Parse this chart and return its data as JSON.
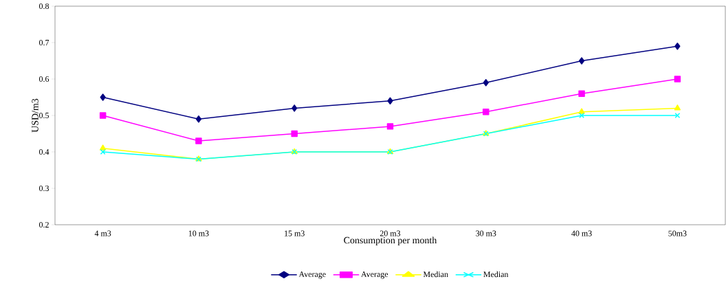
{
  "chart_data": {
    "type": "line",
    "xlabel": "Consumption per month",
    "ylabel": "USD/m3",
    "categories": [
      "4 m3",
      "10 m3",
      "15 m3",
      "20 m3",
      "30 m3",
      "40 m3",
      "50m3"
    ],
    "ylim": [
      0.2,
      0.8
    ],
    "yticks": [
      0.2,
      0.3,
      0.4,
      0.5,
      0.6,
      0.7,
      0.8
    ],
    "grid": false,
    "legend": "bottom",
    "series": [
      {
        "name": "Average",
        "color": "#000080",
        "marker": "diamond",
        "values": [
          0.55,
          0.49,
          0.52,
          0.54,
          0.59,
          0.65,
          0.69
        ]
      },
      {
        "name": "Average",
        "color": "#ff00ff",
        "marker": "square",
        "values": [
          0.5,
          0.43,
          0.45,
          0.47,
          0.51,
          0.56,
          0.6
        ]
      },
      {
        "name": "Median",
        "color": "#ffff00",
        "marker": "triangle",
        "values": [
          0.41,
          0.38,
          0.4,
          0.4,
          0.45,
          0.51,
          0.52
        ]
      },
      {
        "name": "Median",
        "color": "#00ffff",
        "marker": "cross",
        "values": [
          0.4,
          0.38,
          0.4,
          0.4,
          0.45,
          0.5,
          0.5
        ]
      }
    ]
  }
}
